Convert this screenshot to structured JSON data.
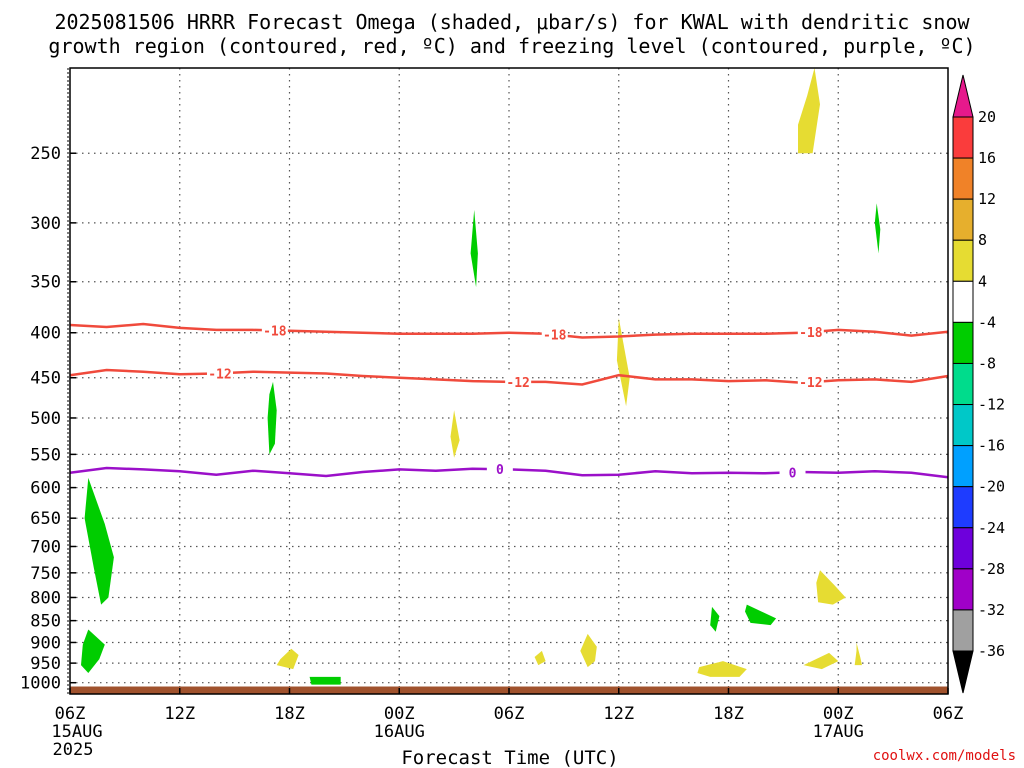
{
  "title_lines": [
    "2025081506 HRRR Forecast Omega (shaded, μbar/s) for KWAL with dendritic snow",
    "growth region (contoured, red, ºC) and freezing level (contoured, purple, ºC)"
  ],
  "credit": "coolwx.com/models",
  "chart_data": {
    "type": "contour-time-height",
    "xlabel": "Forecast Time (UTC)",
    "ylabel": "",
    "x_range_hours": [
      0,
      48
    ],
    "y_range_hPa": [
      200,
      1030
    ],
    "y_scale": "log",
    "grid": true,
    "x_ticks": [
      {
        "hour": 0,
        "label": "06Z",
        "sub1": "15AUG",
        "sub2": "2025"
      },
      {
        "hour": 6,
        "label": "12Z",
        "sub1": "",
        "sub2": ""
      },
      {
        "hour": 12,
        "label": "18Z",
        "sub1": "",
        "sub2": ""
      },
      {
        "hour": 18,
        "label": "00Z",
        "sub1": "16AUG",
        "sub2": ""
      },
      {
        "hour": 24,
        "label": "06Z",
        "sub1": "",
        "sub2": ""
      },
      {
        "hour": 30,
        "label": "12Z",
        "sub1": "",
        "sub2": ""
      },
      {
        "hour": 36,
        "label": "18Z",
        "sub1": "",
        "sub2": ""
      },
      {
        "hour": 42,
        "label": "00Z",
        "sub1": "17AUG",
        "sub2": ""
      },
      {
        "hour": 48,
        "label": "06Z",
        "sub1": "",
        "sub2": ""
      }
    ],
    "y_ticks": [
      250,
      300,
      350,
      400,
      450,
      500,
      550,
      600,
      650,
      700,
      750,
      800,
      850,
      900,
      950,
      1000
    ],
    "colorbar": {
      "levels": [
        -36,
        -32,
        -28,
        -24,
        -20,
        -16,
        -12,
        -8,
        -4,
        4,
        8,
        12,
        16,
        20
      ],
      "bins": [
        {
          "from": -36,
          "to": -32,
          "color": "#a0a0a0"
        },
        {
          "from": -32,
          "to": -28,
          "color": "#a000c8"
        },
        {
          "from": -28,
          "to": -24,
          "color": "#6e00dc"
        },
        {
          "from": -24,
          "to": -20,
          "color": "#1e3cff"
        },
        {
          "from": -20,
          "to": -16,
          "color": "#00a0ff"
        },
        {
          "from": -16,
          "to": -12,
          "color": "#00c8c8"
        },
        {
          "from": -12,
          "to": -8,
          "color": "#00dc8c"
        },
        {
          "from": -8,
          "to": -4,
          "color": "#00cd00"
        },
        {
          "from": -4,
          "to": 4,
          "color": "#ffffff"
        },
        {
          "from": 4,
          "to": 8,
          "color": "#e6dc32"
        },
        {
          "from": 8,
          "to": 12,
          "color": "#e6af2d"
        },
        {
          "from": 12,
          "to": 16,
          "color": "#f08228"
        },
        {
          "from": 16,
          "to": 20,
          "color": "#fa3c3c"
        }
      ],
      "under_color": "#000000",
      "over_color": "#e6198c"
    },
    "contours": [
      {
        "name": "-18",
        "color": "#f04a3c",
        "label": "-18",
        "hours": [
          0,
          2,
          4,
          6,
          8,
          10,
          12,
          14,
          16,
          18,
          20,
          22,
          24,
          26,
          28,
          30,
          32,
          34,
          36,
          38,
          40,
          42,
          44,
          46,
          48
        ],
        "levels": [
          392,
          394,
          391,
          395,
          397,
          397,
          398,
          399,
          400,
          401,
          401,
          401,
          400,
          401,
          405,
          404,
          402,
          401,
          401,
          401,
          400,
          397,
          399,
          403,
          399
        ],
        "label_hours": [
          11.2,
          26.5,
          40.5
        ]
      },
      {
        "name": "-12",
        "color": "#f04a3c",
        "label": "-12",
        "hours": [
          0,
          2,
          4,
          6,
          8,
          10,
          12,
          14,
          16,
          18,
          20,
          22,
          24,
          26,
          28,
          30,
          32,
          34,
          36,
          38,
          40,
          42,
          44,
          46,
          48
        ],
        "levels": [
          447,
          441,
          443,
          446,
          445,
          443,
          444,
          445,
          448,
          450,
          452,
          454,
          455,
          455,
          458,
          447,
          452,
          452,
          454,
          453,
          456,
          453,
          452,
          455,
          448
        ],
        "label_hours": [
          8.2,
          24.5,
          40.5
        ]
      },
      {
        "name": "0",
        "color": "#9b10c9",
        "label": "0",
        "hours": [
          0,
          2,
          4,
          6,
          8,
          10,
          12,
          14,
          16,
          18,
          20,
          22,
          24,
          26,
          28,
          30,
          32,
          34,
          36,
          38,
          40,
          42,
          44,
          46,
          48
        ],
        "levels": [
          577,
          570,
          572,
          575,
          580,
          574,
          578,
          582,
          576,
          572,
          574,
          571,
          572,
          574,
          581,
          580,
          575,
          578,
          577,
          578,
          576,
          577,
          575,
          577,
          584
        ],
        "label_hours": [
          23.5,
          39.5
        ]
      }
    ],
    "omega_regions": [
      {
        "color": "#00cd00",
        "value_range": [
          -8,
          -4
        ],
        "points": [
          [
            1.0,
            585
          ],
          [
            1.9,
            660
          ],
          [
            2.4,
            720
          ],
          [
            2.1,
            800
          ],
          [
            1.7,
            815
          ],
          [
            1.3,
            740
          ],
          [
            0.8,
            650
          ]
        ]
      },
      {
        "color": "#00cd00",
        "value_range": [
          -8,
          -4
        ],
        "points": [
          [
            1.0,
            870
          ],
          [
            1.9,
            905
          ],
          [
            1.6,
            940
          ],
          [
            1.0,
            975
          ],
          [
            0.6,
            955
          ],
          [
            0.7,
            905
          ]
        ]
      },
      {
        "color": "#00cd00",
        "value_range": [
          -8,
          -4
        ],
        "points": [
          [
            11.1,
            455
          ],
          [
            11.3,
            490
          ],
          [
            11.2,
            535
          ],
          [
            10.9,
            550
          ],
          [
            10.8,
            500
          ],
          [
            10.9,
            470
          ]
        ]
      },
      {
        "color": "#00cd00",
        "value_range": [
          -8,
          -4
        ],
        "points": [
          [
            13.1,
            985
          ],
          [
            14.8,
            985
          ],
          [
            14.8,
            1005
          ],
          [
            13.2,
            1005
          ]
        ]
      },
      {
        "color": "#00cd00",
        "value_range": [
          -8,
          -4
        ],
        "points": [
          [
            22.1,
            290
          ],
          [
            22.3,
            325
          ],
          [
            22.2,
            355
          ],
          [
            21.9,
            325
          ]
        ]
      },
      {
        "color": "#00cd00",
        "value_range": [
          -8,
          -4
        ],
        "points": [
          [
            35.1,
            820
          ],
          [
            35.5,
            840
          ],
          [
            35.3,
            875
          ],
          [
            35.0,
            860
          ]
        ]
      },
      {
        "color": "#00cd00",
        "value_range": [
          -8,
          -4
        ],
        "points": [
          [
            37.0,
            815
          ],
          [
            38.6,
            845
          ],
          [
            38.3,
            860
          ],
          [
            37.2,
            855
          ],
          [
            36.9,
            830
          ]
        ]
      },
      {
        "color": "#00cd00",
        "value_range": [
          -8,
          -4
        ],
        "points": [
          [
            44.1,
            285
          ],
          [
            44.3,
            305
          ],
          [
            44.2,
            325
          ],
          [
            44.0,
            300
          ]
        ]
      },
      {
        "color": "#e6dc32",
        "value_range": [
          4,
          8
        ],
        "points": [
          [
            40.7,
            200
          ],
          [
            41.0,
            220
          ],
          [
            40.6,
            250
          ],
          [
            39.8,
            250
          ],
          [
            39.8,
            232
          ],
          [
            40.3,
            215
          ]
        ]
      },
      {
        "color": "#e6dc32",
        "value_range": [
          4,
          8
        ],
        "points": [
          [
            30.0,
            385
          ],
          [
            30.6,
            450
          ],
          [
            30.4,
            485
          ],
          [
            29.9,
            430
          ]
        ]
      },
      {
        "color": "#e6dc32",
        "value_range": [
          4,
          8
        ],
        "points": [
          [
            21.0,
            490
          ],
          [
            21.3,
            530
          ],
          [
            21.0,
            555
          ],
          [
            20.8,
            525
          ]
        ]
      },
      {
        "color": "#e6dc32",
        "value_range": [
          4,
          8
        ],
        "points": [
          [
            12.1,
            915
          ],
          [
            12.5,
            930
          ],
          [
            12.2,
            965
          ],
          [
            11.3,
            955
          ],
          [
            11.5,
            940
          ]
        ]
      },
      {
        "color": "#e6dc32",
        "value_range": [
          4,
          8
        ],
        "points": [
          [
            25.8,
            920
          ],
          [
            26.0,
            945
          ],
          [
            25.6,
            955
          ],
          [
            25.4,
            935
          ]
        ]
      },
      {
        "color": "#e6dc32",
        "value_range": [
          4,
          8
        ],
        "points": [
          [
            28.3,
            880
          ],
          [
            28.8,
            910
          ],
          [
            28.7,
            945
          ],
          [
            28.3,
            960
          ],
          [
            27.9,
            920
          ]
        ]
      },
      {
        "color": "#e6dc32",
        "value_range": [
          4,
          8
        ],
        "points": [
          [
            34.4,
            960
          ],
          [
            35.7,
            945
          ],
          [
            37.0,
            965
          ],
          [
            36.6,
            985
          ],
          [
            35.0,
            985
          ],
          [
            34.3,
            975
          ]
        ]
      },
      {
        "color": "#e6dc32",
        "value_range": [
          4,
          8
        ],
        "points": [
          [
            41.0,
            745
          ],
          [
            41.8,
            775
          ],
          [
            42.4,
            800
          ],
          [
            41.7,
            815
          ],
          [
            40.9,
            810
          ],
          [
            40.8,
            770
          ]
        ]
      },
      {
        "color": "#e6dc32",
        "value_range": [
          4,
          8
        ],
        "points": [
          [
            41.5,
            925
          ],
          [
            42.0,
            945
          ],
          [
            41.1,
            965
          ],
          [
            40.1,
            955
          ]
        ]
      },
      {
        "color": "#e6dc32",
        "value_range": [
          4,
          8
        ],
        "points": [
          [
            43.0,
            900
          ],
          [
            43.2,
            935
          ],
          [
            43.3,
            955
          ],
          [
            42.9,
            955
          ],
          [
            43.0,
            920
          ]
        ]
      }
    ],
    "terrain": {
      "color": "#a0522d",
      "surface_hPa": 1010
    }
  }
}
